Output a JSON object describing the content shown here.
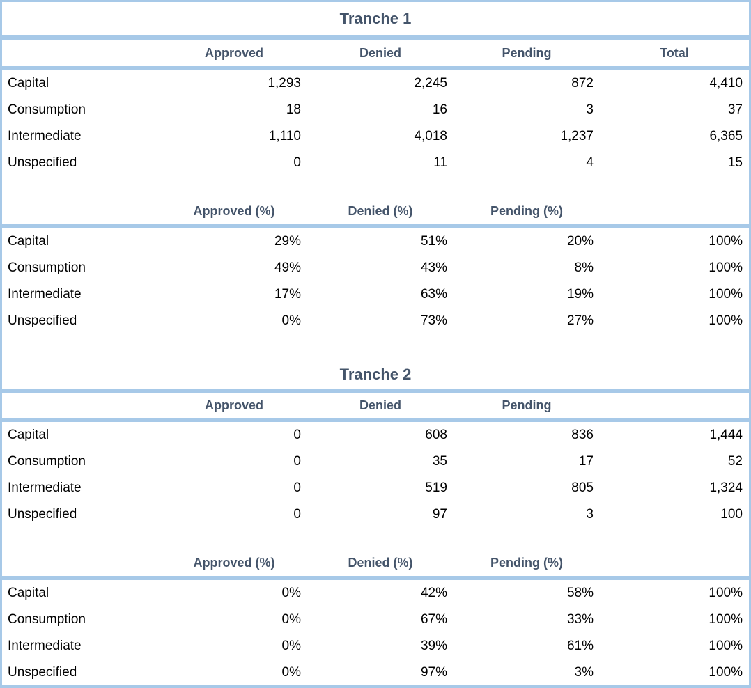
{
  "style": {
    "accent_border_color": "#a7c9e8",
    "header_text_color": "#44546a",
    "body_text_color": "#000000",
    "background_color": "#ffffff"
  },
  "tranche1": {
    "title": "Tranche 1",
    "counts": {
      "headers": [
        "Approved",
        "Denied",
        "Pending",
        "Total"
      ],
      "rows": [
        [
          "Capital",
          "1,293",
          "2,245",
          "872",
          "4,410"
        ],
        [
          "Consumption",
          "18",
          "16",
          "3",
          "37"
        ],
        [
          "Intermediate",
          "1,110",
          "4,018",
          "1,237",
          "6,365"
        ],
        [
          "Unspecified",
          "0",
          "11",
          "4",
          "15"
        ]
      ]
    },
    "percentages": {
      "headers": [
        "Approved (%)",
        "Denied (%)",
        "Pending (%)",
        ""
      ],
      "rows": [
        [
          "Capital",
          "29%",
          "51%",
          "20%",
          "100%"
        ],
        [
          "Consumption",
          "49%",
          "43%",
          "8%",
          "100%"
        ],
        [
          "Intermediate",
          "17%",
          "63%",
          "19%",
          "100%"
        ],
        [
          "Unspecified",
          "0%",
          "73%",
          "27%",
          "100%"
        ]
      ]
    }
  },
  "tranche2": {
    "title": "Tranche 2",
    "counts": {
      "headers": [
        "Approved",
        "Denied",
        "Pending",
        ""
      ],
      "rows": [
        [
          "Capital",
          "0",
          "608",
          "836",
          "1,444"
        ],
        [
          "Consumption",
          "0",
          "35",
          "17",
          "52"
        ],
        [
          "Intermediate",
          "0",
          "519",
          "805",
          "1,324"
        ],
        [
          "Unspecified",
          "0",
          "97",
          "3",
          "100"
        ]
      ]
    },
    "percentages": {
      "headers": [
        "Approved (%)",
        "Denied (%)",
        "Pending (%)",
        ""
      ],
      "rows": [
        [
          "Capital",
          "0%",
          "42%",
          "58%",
          "100%"
        ],
        [
          "Consumption",
          "0%",
          "67%",
          "33%",
          "100%"
        ],
        [
          "Intermediate",
          "0%",
          "39%",
          "61%",
          "100%"
        ],
        [
          "Unspecified",
          "0%",
          "97%",
          "3%",
          "100%"
        ]
      ]
    }
  }
}
